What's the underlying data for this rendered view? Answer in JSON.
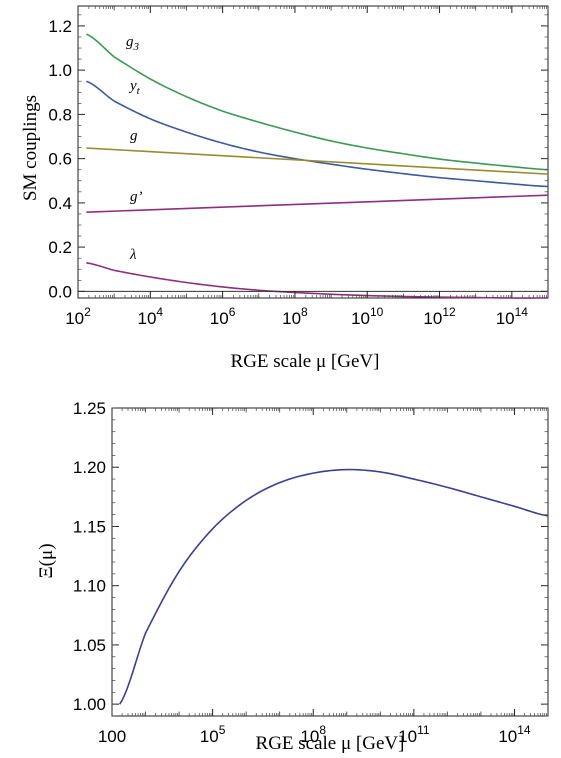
{
  "chart_data": [
    {
      "type": "line",
      "title": "",
      "xlabel": "RGE scale μ [GeV]",
      "ylabel": "SM couplings",
      "x_scale": "log",
      "xlim": [
        100,
        1000000000000000.0
      ],
      "ylim": [
        -0.03,
        1.29
      ],
      "x_tick_labels": [
        {
          "base": "10",
          "exp": "2"
        },
        {
          "base": "10",
          "exp": "4"
        },
        {
          "base": "10",
          "exp": "6"
        },
        {
          "base": "10",
          "exp": "8"
        },
        {
          "base": "10",
          "exp": "10"
        },
        {
          "base": "10",
          "exp": "12"
        },
        {
          "base": "10",
          "exp": "14"
        }
      ],
      "y_tick_labels": [
        "0.0",
        "0.2",
        "0.4",
        "0.6",
        "0.8",
        "1.0",
        "1.2"
      ],
      "grid": false,
      "series": [
        {
          "name": "g3",
          "color": "#3a9a53",
          "x": [
            170,
            1000,
            10000,
            100000,
            1000000.0,
            10000000.0,
            100000000.0,
            1000000000.0,
            10000000000.0,
            100000000000.0,
            1000000000000.0,
            10000000000000.0,
            100000000000000.0,
            1000000000000000.0
          ],
          "y": [
            1.163,
            1.06,
            0.96,
            0.88,
            0.815,
            0.765,
            0.72,
            0.68,
            0.648,
            0.622,
            0.598,
            0.58,
            0.564,
            0.55
          ]
        },
        {
          "name": "yt",
          "color": "#3c5a9e",
          "x": [
            170,
            1000,
            10000,
            100000,
            1000000.0,
            10000000.0,
            100000000.0,
            1000000000.0,
            10000000000.0,
            100000000000.0,
            1000000000000.0,
            10000000000000.0,
            100000000000000.0,
            1000000000000000.0
          ],
          "y": [
            0.95,
            0.86,
            0.78,
            0.72,
            0.67,
            0.63,
            0.6,
            0.575,
            0.552,
            0.532,
            0.514,
            0.5,
            0.486,
            0.474
          ]
        },
        {
          "name": "g",
          "color": "#9a8a30",
          "x": [
            170,
            1000000000000000.0
          ],
          "y": [
            0.648,
            0.53
          ]
        },
        {
          "name": "g'",
          "color": "#8e2f7e",
          "x": [
            170,
            1000000000000000.0
          ],
          "y": [
            0.358,
            0.435
          ]
        },
        {
          "name": "λ",
          "color": "#8e2f7e",
          "x": [
            170,
            1000,
            10000,
            100000,
            1000000.0,
            10000000.0,
            100000000.0,
            1000000000.0,
            10000000000.0,
            100000000000.0,
            1000000000000.0,
            10000000000000.0,
            100000000000000.0,
            1000000000000000.0
          ],
          "y": [
            0.129,
            0.095,
            0.065,
            0.04,
            0.02,
            0.005,
            -0.005,
            -0.013,
            -0.019,
            -0.023,
            -0.026,
            -0.028,
            -0.03,
            -0.03
          ]
        },
        {
          "name": "",
          "color": "#333333",
          "x": [
            100,
            1000000000000000.0
          ],
          "y": [
            0.0,
            0.0
          ]
        }
      ]
    },
    {
      "type": "line",
      "title": "",
      "xlabel": "RGE scale μ [GeV]",
      "ylabel": "Ξ(μ)",
      "x_scale": "log",
      "xlim": [
        100,
        1000000000000000.0
      ],
      "ylim": [
        0.99,
        1.25
      ],
      "x_tick_labels": [
        {
          "base": "100",
          "exp": ""
        },
        {
          "base": "10",
          "exp": "5"
        },
        {
          "base": "10",
          "exp": "8"
        },
        {
          "base": "10",
          "exp": "11"
        },
        {
          "base": "10",
          "exp": "14"
        }
      ],
      "y_tick_labels": [
        "1.00",
        "1.05",
        "1.10",
        "1.15",
        "1.20",
        "1.25"
      ],
      "grid": false,
      "series": [
        {
          "name": "",
          "color": "#3b3f96",
          "x": [
            170,
            1000,
            10000,
            100000,
            1000000.0,
            10000000.0,
            100000000.0,
            1000000000.0,
            10000000000.0,
            100000000000.0,
            1000000000000.0,
            10000000000000.0,
            100000000000000.0,
            1000000000000000.0
          ],
          "y": [
            1.0,
            1.06,
            1.112,
            1.148,
            1.172,
            1.187,
            1.195,
            1.198,
            1.196,
            1.19,
            1.183,
            1.175,
            1.167,
            1.159
          ]
        }
      ]
    }
  ]
}
